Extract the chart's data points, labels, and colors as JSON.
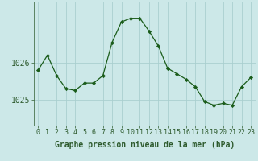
{
  "x": [
    0,
    1,
    2,
    3,
    4,
    5,
    6,
    7,
    8,
    9,
    10,
    11,
    12,
    13,
    14,
    15,
    16,
    17,
    18,
    19,
    20,
    21,
    22,
    23
  ],
  "y": [
    1025.8,
    1026.2,
    1025.65,
    1025.3,
    1025.25,
    1025.45,
    1025.45,
    1025.65,
    1026.55,
    1027.1,
    1027.2,
    1027.2,
    1026.85,
    1026.45,
    1025.85,
    1025.7,
    1025.55,
    1025.35,
    1024.95,
    1024.85,
    1024.9,
    1024.85,
    1025.35,
    1025.6
  ],
  "line_color": "#1a5c1a",
  "marker_color": "#1a5c1a",
  "bg_color": "#cce8e8",
  "grid_color": "#aacfcf",
  "axis_color": "#2d5a2d",
  "xlabel": "Graphe pression niveau de la mer (hPa)",
  "xlabel_fontsize": 7,
  "tick_fontsize": 6,
  "ytick_labels": [
    "1025",
    "1026"
  ],
  "ytick_values": [
    1025.0,
    1026.0
  ],
  "ylim": [
    1024.3,
    1027.65
  ],
  "xlim": [
    -0.5,
    23.5
  ]
}
